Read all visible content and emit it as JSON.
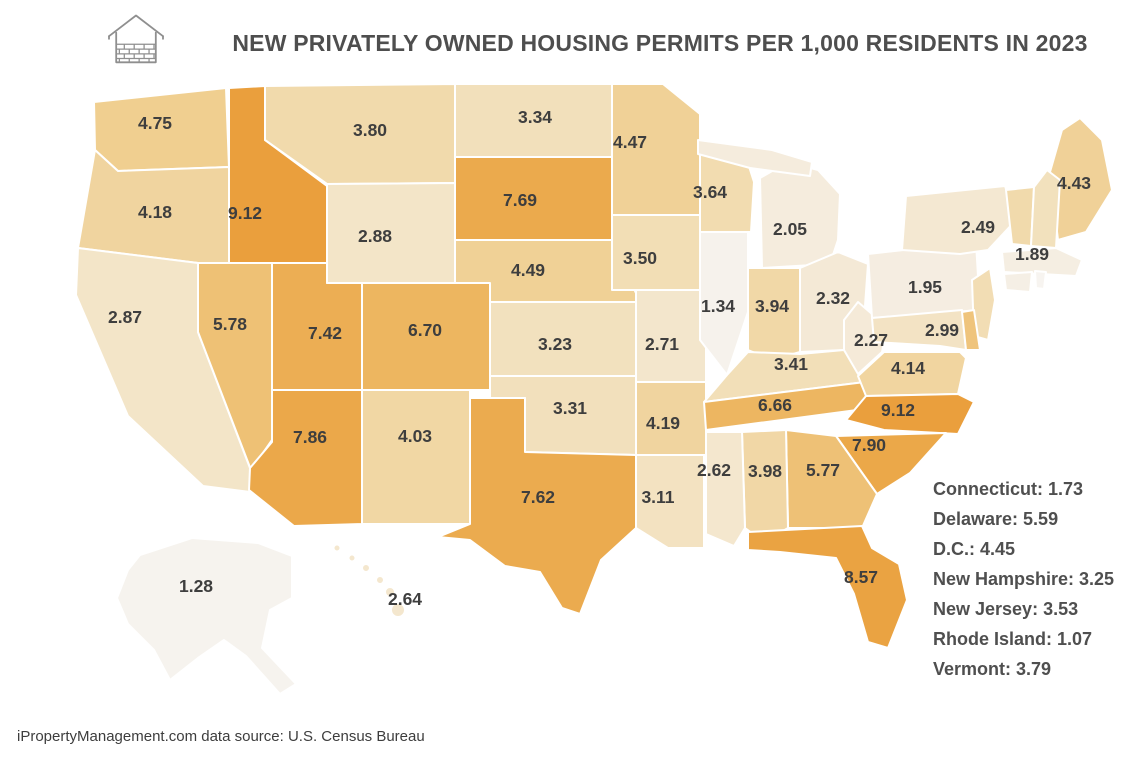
{
  "title": "NEW PRIVATELY OWNED HOUSING PERMITS PER 1,000 RESIDENTS IN 2023",
  "footer": "iPropertyManagement.com data source: U.S. Census Bureau",
  "icon": "house-brick-icon",
  "legend": {
    "items": [
      {
        "name": "Connecticut",
        "value": "1.73"
      },
      {
        "name": "Delaware",
        "value": "5.59"
      },
      {
        "name": "D.C.",
        "value": "4.45"
      },
      {
        "name": "New Hampshire",
        "value": "3.25"
      },
      {
        "name": "New Jersey",
        "value": "3.53"
      },
      {
        "name": "Rhode Island",
        "value": "1.07"
      },
      {
        "name": "Vermont",
        "value": "3.79"
      }
    ]
  },
  "chart_data": {
    "type": "heatmap",
    "subtype": "us-choropleth-map",
    "title": "NEW PRIVATELY OWNED HOUSING PERMITS PER 1,000 RESIDENTS IN 2023",
    "unit": "new privately owned housing permits per 1,000 residents",
    "year": "2023",
    "color_scale": {
      "min_value": 1.07,
      "max_value": 9.12,
      "min_color": "#F7F4F0",
      "max_color": "#EA9F3D"
    },
    "states": [
      {
        "id": "wa",
        "name": "Washington",
        "value": 4.75,
        "label": "4.75",
        "color": "#F0CF90"
      },
      {
        "id": "or",
        "name": "Oregon",
        "value": 4.18,
        "label": "4.18",
        "color": "#F0D49F"
      },
      {
        "id": "ca",
        "name": "California",
        "value": 2.87,
        "label": "2.87",
        "color": "#F3E5C8"
      },
      {
        "id": "id",
        "name": "Idaho",
        "value": 9.12,
        "label": "9.12",
        "color": "#EA9F3D"
      },
      {
        "id": "nv",
        "name": "Nevada",
        "value": 5.78,
        "label": "5.78",
        "color": "#EEC175"
      },
      {
        "id": "ut",
        "name": "Utah",
        "value": 7.42,
        "label": "7.42",
        "color": "#ECAE54"
      },
      {
        "id": "az",
        "name": "Arizona",
        "value": 7.86,
        "label": "7.86",
        "color": "#EBA84A"
      },
      {
        "id": "mt",
        "name": "Montana",
        "value": 3.8,
        "label": "3.80",
        "color": "#F1DAAC"
      },
      {
        "id": "wy",
        "name": "Wyoming",
        "value": 2.88,
        "label": "2.88",
        "color": "#F3E5C8"
      },
      {
        "id": "co",
        "name": "Colorado",
        "value": 6.7,
        "label": "6.70",
        "color": "#EDB660"
      },
      {
        "id": "nm",
        "name": "New Mexico",
        "value": 4.03,
        "label": "4.03",
        "color": "#F1D7A4"
      },
      {
        "id": "nd",
        "name": "North Dakota",
        "value": 3.34,
        "label": "3.34",
        "color": "#F2E0BB"
      },
      {
        "id": "sd",
        "name": "South Dakota",
        "value": 7.69,
        "label": "7.69",
        "color": "#EBAA4D"
      },
      {
        "id": "ne",
        "name": "Nebraska",
        "value": 4.49,
        "label": "4.49",
        "color": "#F0D196"
      },
      {
        "id": "ks",
        "name": "Kansas",
        "value": 3.23,
        "label": "3.23",
        "color": "#F2E1BE"
      },
      {
        "id": "ok",
        "name": "Oklahoma",
        "value": 3.31,
        "label": "3.31",
        "color": "#F2E0BC"
      },
      {
        "id": "tx",
        "name": "Texas",
        "value": 7.62,
        "label": "7.62",
        "color": "#EBAB4F"
      },
      {
        "id": "mn",
        "name": "Minnesota",
        "value": 4.47,
        "label": "4.47",
        "color": "#F0D197"
      },
      {
        "id": "ia",
        "name": "Iowa",
        "value": 3.5,
        "label": "3.50",
        "color": "#F2DEB5"
      },
      {
        "id": "mo",
        "name": "Missouri",
        "value": 2.71,
        "label": "2.71",
        "color": "#F3E6CC"
      },
      {
        "id": "ar",
        "name": "Arkansas",
        "value": 4.19,
        "label": "4.19",
        "color": "#F0D49F"
      },
      {
        "id": "la",
        "name": "Louisiana",
        "value": 3.11,
        "label": "3.11",
        "color": "#F3E2C1"
      },
      {
        "id": "wi",
        "name": "Wisconsin",
        "value": 3.64,
        "label": "3.64",
        "color": "#F2DCB0"
      },
      {
        "id": "il",
        "name": "Illinois",
        "value": 1.34,
        "label": "1.34",
        "color": "#F6F2EC"
      },
      {
        "id": "mi",
        "name": "Michigan",
        "value": 2.05,
        "label": "2.05",
        "color": "#F5ECDD"
      },
      {
        "id": "in",
        "name": "Indiana",
        "value": 3.94,
        "label": "3.94",
        "color": "#F1D8A7"
      },
      {
        "id": "oh",
        "name": "Ohio",
        "value": 2.32,
        "label": "2.32",
        "color": "#F4E9D6"
      },
      {
        "id": "ky",
        "name": "Kentucky",
        "value": 3.41,
        "label": "3.41",
        "color": "#F2DFB8"
      },
      {
        "id": "tn",
        "name": "Tennessee",
        "value": 6.66,
        "label": "6.66",
        "color": "#EDB661"
      },
      {
        "id": "wv",
        "name": "West Virginia",
        "value": 2.27,
        "label": "2.27",
        "color": "#F5EAD8"
      },
      {
        "id": "pa",
        "name": "Pennsylvania",
        "value": 1.95,
        "label": "1.95",
        "color": "#F5EDE1"
      },
      {
        "id": "ny",
        "name": "New York",
        "value": 2.49,
        "label": "2.49",
        "color": "#F4E8D2"
      },
      {
        "id": "md",
        "name": "Maryland",
        "value": 2.99,
        "label": "2.99",
        "color": "#F3E3C4"
      },
      {
        "id": "va",
        "name": "Virginia",
        "value": 4.14,
        "label": "4.14",
        "color": "#F1D5A0"
      },
      {
        "id": "nc",
        "name": "North Carolina",
        "value": 9.12,
        "label": "9.12",
        "color": "#EA9F3D"
      },
      {
        "id": "sc",
        "name": "South Carolina",
        "value": 7.9,
        "label": "7.90",
        "color": "#EBA849"
      },
      {
        "id": "ga",
        "name": "Georgia",
        "value": 5.77,
        "label": "5.77",
        "color": "#EEC176"
      },
      {
        "id": "al",
        "name": "Alabama",
        "value": 3.98,
        "label": "3.98",
        "color": "#F1D7A6"
      },
      {
        "id": "ms",
        "name": "Mississippi",
        "value": 2.62,
        "label": "2.62",
        "color": "#F4E7CE"
      },
      {
        "id": "fl",
        "name": "Florida",
        "value": 8.57,
        "label": "8.57",
        "color": "#EAA342"
      },
      {
        "id": "me",
        "name": "Maine",
        "value": 4.43,
        "label": "4.43",
        "color": "#F0D198"
      },
      {
        "id": "ma",
        "name": "Massachusetts",
        "value": 1.89,
        "label": "1.89",
        "color": "#F5EEE2"
      },
      {
        "id": "ak",
        "name": "Alaska",
        "value": 1.28,
        "label": "1.28",
        "color": "#F6F3EE"
      },
      {
        "id": "hi",
        "name": "Hawaii",
        "value": 2.64,
        "label": "2.64",
        "color": "#F4E7CE"
      },
      {
        "id": "vt",
        "name": "Vermont",
        "value": 3.79,
        "color": "#F1DAAC"
      },
      {
        "id": "nh",
        "name": "New Hampshire",
        "value": 3.25,
        "color": "#F2E1BD"
      },
      {
        "id": "ct",
        "name": "Connecticut",
        "value": 1.73,
        "color": "#F5EFE5"
      },
      {
        "id": "ri",
        "name": "Rhode Island",
        "value": 1.07,
        "color": "#F7F4F0"
      },
      {
        "id": "nj",
        "name": "New Jersey",
        "value": 3.53,
        "color": "#F2DDB4"
      },
      {
        "id": "de",
        "name": "Delaware",
        "value": 5.59,
        "color": "#EFC47C"
      },
      {
        "id": "dc",
        "name": "D.C.",
        "value": 4.45,
        "color": "#F0D197"
      }
    ]
  }
}
